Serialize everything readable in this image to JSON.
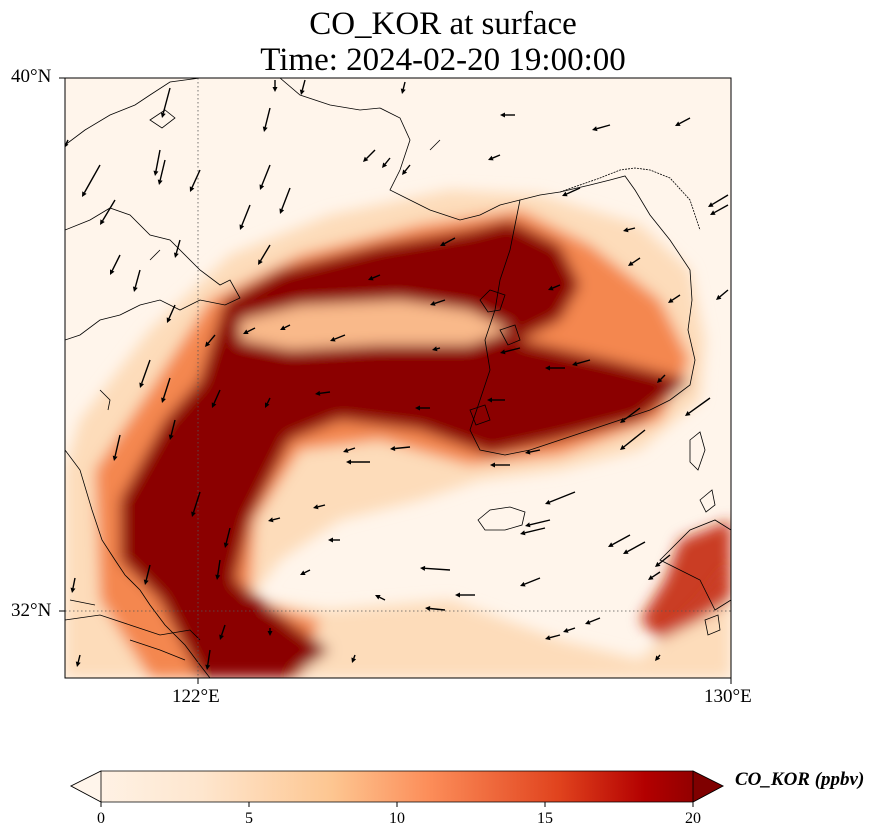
{
  "title": {
    "line1": "CO_KOR at surface",
    "line2": "Time: 2024-02-20 19:00:00"
  },
  "axes": {
    "lat_ticks": [
      "40°N",
      "32°N"
    ],
    "lon_ticks": [
      "122°E",
      "130°E"
    ],
    "lat_range": [
      31,
      40
    ],
    "lon_range": [
      120,
      130
    ],
    "gridlines": "dotted"
  },
  "colorbar": {
    "label": "CO_KOR (ppbv)",
    "ticks": [
      "0",
      "5",
      "10",
      "15",
      "20"
    ],
    "range": [
      0,
      20
    ],
    "extend": "both",
    "colormap": [
      "#fff5eb",
      "#fdd3a7",
      "#fd9243",
      "#e95e0d",
      "#b72402",
      "#7f0000"
    ]
  },
  "map": {
    "background_color": "#fff5eb",
    "plume_max_color": "#7f0000",
    "wind_vectors": "shown"
  }
}
